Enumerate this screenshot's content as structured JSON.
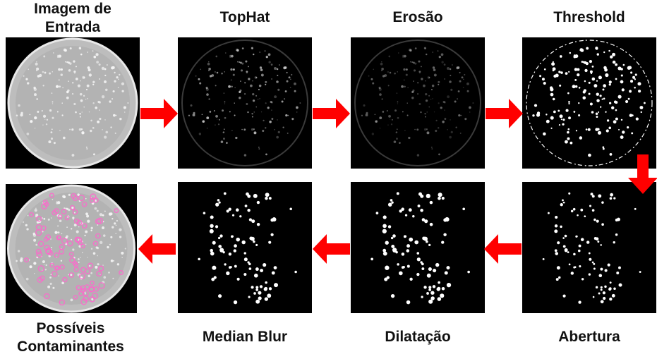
{
  "colors": {
    "arrow": "#ff0000",
    "panel_background": "#000000",
    "plate_agar": "#bdbdbd",
    "colony_bright": "#ffffff",
    "contaminant_mark": "#ff66cc"
  },
  "stages": [
    {
      "id": "input",
      "label": "Imagem de\nEntrada"
    },
    {
      "id": "tophat",
      "label": "TopHat"
    },
    {
      "id": "erosion",
      "label": "Erosão"
    },
    {
      "id": "threshold",
      "label": "Threshold"
    },
    {
      "id": "opening",
      "label": "Abertura"
    },
    {
      "id": "dilation",
      "label": "Dilatação"
    },
    {
      "id": "median",
      "label": "Median Blur"
    },
    {
      "id": "output",
      "label": "Possíveis\nContaminantes"
    }
  ],
  "arrows": [
    {
      "from": "input",
      "to": "tophat",
      "direction": "right"
    },
    {
      "from": "tophat",
      "to": "erosion",
      "direction": "right"
    },
    {
      "from": "erosion",
      "to": "threshold",
      "direction": "right"
    },
    {
      "from": "threshold",
      "to": "opening",
      "direction": "down"
    },
    {
      "from": "opening",
      "to": "dilation",
      "direction": "left"
    },
    {
      "from": "dilation",
      "to": "median",
      "direction": "left"
    },
    {
      "from": "median",
      "to": "output",
      "direction": "left"
    }
  ]
}
